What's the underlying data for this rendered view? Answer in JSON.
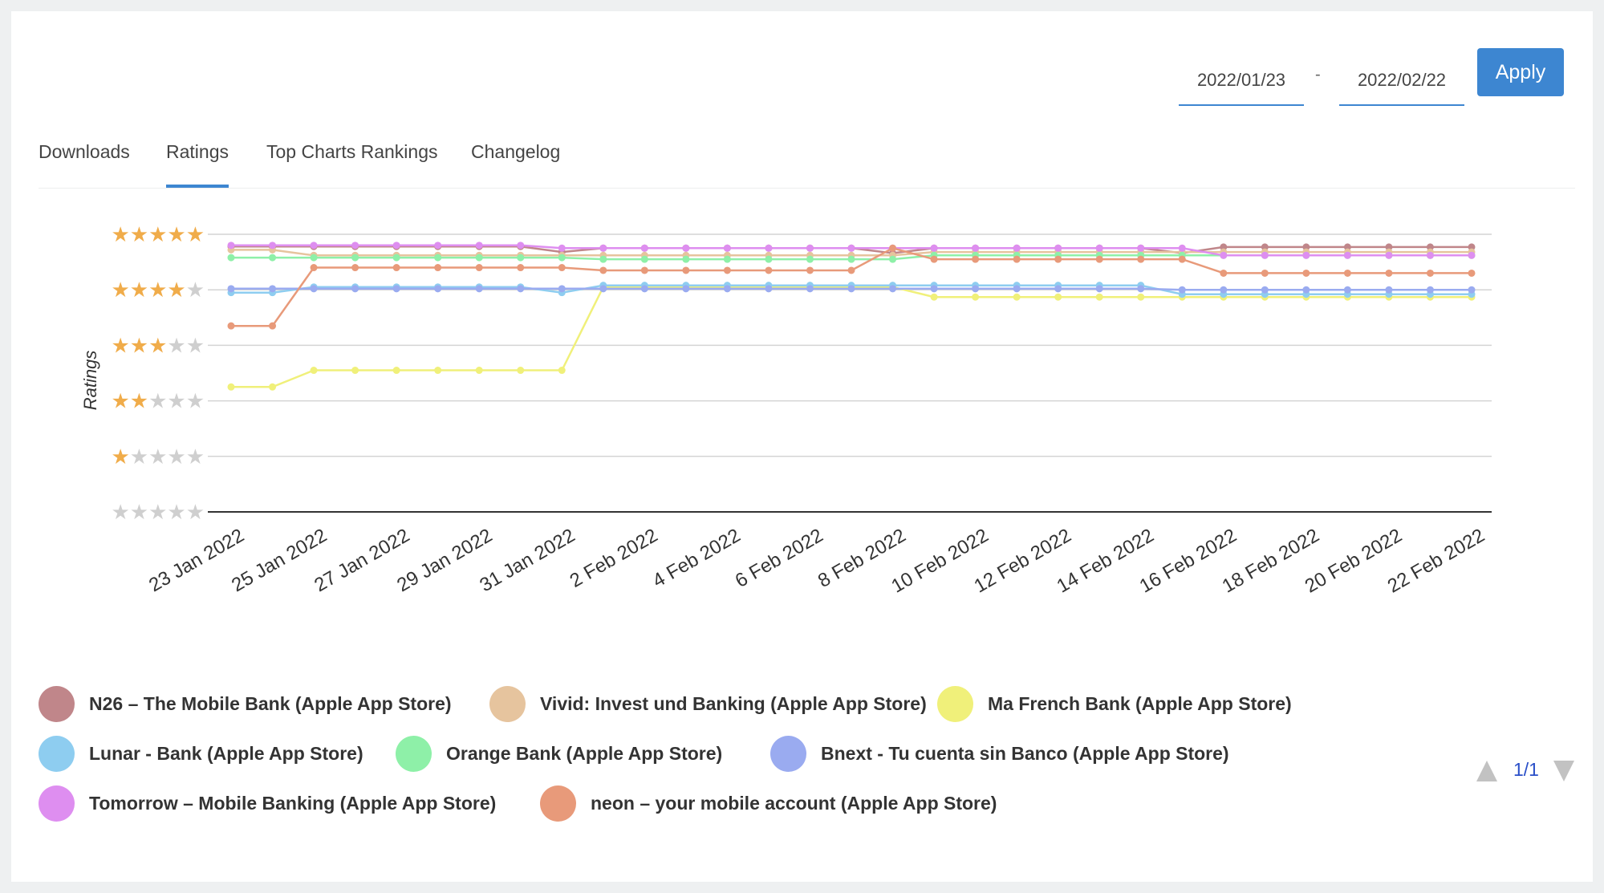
{
  "date_range": {
    "start": "2022/01/23",
    "separator": "-",
    "end": "2022/02/22"
  },
  "apply_label": "Apply",
  "tabs": [
    {
      "label": "Downloads",
      "active": false
    },
    {
      "label": "Ratings",
      "active": true
    },
    {
      "label": "Top Charts Rankings",
      "active": false
    },
    {
      "label": "Changelog",
      "active": false
    }
  ],
  "pager": {
    "label": "1/1"
  },
  "chart_data": {
    "type": "line",
    "ylabel": "Ratings",
    "ylim": [
      0,
      5
    ],
    "y_ticks": [
      0,
      1,
      2,
      3,
      4,
      5
    ],
    "y_tick_style": "star-rating",
    "x": [
      "2022-01-23",
      "2022-01-24",
      "2022-01-25",
      "2022-01-26",
      "2022-01-27",
      "2022-01-28",
      "2022-01-29",
      "2022-01-30",
      "2022-01-31",
      "2022-02-01",
      "2022-02-02",
      "2022-02-03",
      "2022-02-04",
      "2022-02-05",
      "2022-02-06",
      "2022-02-07",
      "2022-02-08",
      "2022-02-09",
      "2022-02-10",
      "2022-02-11",
      "2022-02-12",
      "2022-02-13",
      "2022-02-14",
      "2022-02-15",
      "2022-02-16",
      "2022-02-17",
      "2022-02-18",
      "2022-02-19",
      "2022-02-20",
      "2022-02-21",
      "2022-02-22"
    ],
    "x_tick_labels": [
      "23 Jan 2022",
      "25 Jan 2022",
      "27 Jan 2022",
      "29 Jan 2022",
      "31 Jan 2022",
      "2 Feb 2022",
      "4 Feb 2022",
      "6 Feb 2022",
      "8 Feb 2022",
      "10 Feb 2022",
      "12 Feb 2022",
      "14 Feb 2022",
      "16 Feb 2022",
      "18 Feb 2022",
      "20 Feb 2022",
      "22 Feb 2022"
    ],
    "grid": true,
    "legend_position": "bottom",
    "series": [
      {
        "name": "N26 – The Mobile Bank (Apple App Store)",
        "color": "#c0868a",
        "values": [
          4.78,
          4.78,
          4.78,
          4.78,
          4.78,
          4.78,
          4.78,
          4.78,
          4.68,
          4.75,
          4.75,
          4.75,
          4.75,
          4.75,
          4.75,
          4.75,
          4.66,
          4.75,
          4.75,
          4.75,
          4.75,
          4.75,
          4.75,
          4.66,
          4.77,
          4.77,
          4.77,
          4.77,
          4.77,
          4.77,
          4.77
        ]
      },
      {
        "name": "Vivid: Invest und Banking (Apple App Store)",
        "color": "#e6c49e",
        "values": [
          4.72,
          4.72,
          4.62,
          4.62,
          4.62,
          4.62,
          4.62,
          4.62,
          4.62,
          4.62,
          4.62,
          4.62,
          4.62,
          4.62,
          4.62,
          4.62,
          4.62,
          4.68,
          4.68,
          4.68,
          4.68,
          4.68,
          4.68,
          4.68,
          4.68,
          4.68,
          4.68,
          4.68,
          4.68,
          4.68,
          4.68
        ]
      },
      {
        "name": "Ma French Bank (Apple App Store)",
        "color": "#f0f07a",
        "values": [
          2.25,
          2.25,
          2.55,
          2.55,
          2.55,
          2.55,
          2.55,
          2.55,
          2.55,
          4.05,
          4.05,
          4.05,
          4.05,
          4.05,
          4.05,
          4.05,
          4.05,
          3.87,
          3.87,
          3.87,
          3.87,
          3.87,
          3.87,
          3.87,
          3.87,
          3.87,
          3.87,
          3.87,
          3.87,
          3.87,
          3.87
        ]
      },
      {
        "name": "Lunar - Bank (Apple App Store)",
        "color": "#8ecdf0",
        "values": [
          3.95,
          3.95,
          4.05,
          4.05,
          4.05,
          4.05,
          4.05,
          4.05,
          3.95,
          4.08,
          4.08,
          4.08,
          4.08,
          4.08,
          4.08,
          4.08,
          4.08,
          4.08,
          4.08,
          4.08,
          4.08,
          4.08,
          4.08,
          3.92,
          3.92,
          3.92,
          3.92,
          3.92,
          3.92,
          3.92,
          3.92
        ]
      },
      {
        "name": "Orange Bank (Apple App Store)",
        "color": "#8ef0a8",
        "values": [
          4.58,
          4.58,
          4.58,
          4.58,
          4.58,
          4.58,
          4.58,
          4.58,
          4.58,
          4.55,
          4.55,
          4.55,
          4.55,
          4.55,
          4.55,
          4.55,
          4.55,
          4.62,
          4.62,
          4.62,
          4.62,
          4.62,
          4.62,
          4.62,
          4.62,
          4.62,
          4.62,
          4.62,
          4.62,
          4.62,
          4.62
        ]
      },
      {
        "name": "Bnext - Tu cuenta sin Banco (Apple App Store)",
        "color": "#9aabf0",
        "values": [
          4.02,
          4.02,
          4.02,
          4.02,
          4.02,
          4.02,
          4.02,
          4.02,
          4.02,
          4.02,
          4.02,
          4.02,
          4.02,
          4.02,
          4.02,
          4.02,
          4.02,
          4.02,
          4.02,
          4.02,
          4.02,
          4.02,
          4.02,
          4.0,
          4.0,
          4.0,
          4.0,
          4.0,
          4.0,
          4.0,
          4.0
        ]
      },
      {
        "name": "Tomorrow – Mobile Banking (Apple App Store)",
        "color": "#de8ef0",
        "values": [
          4.8,
          4.8,
          4.8,
          4.8,
          4.8,
          4.8,
          4.8,
          4.8,
          4.75,
          4.75,
          4.75,
          4.75,
          4.75,
          4.75,
          4.75,
          4.75,
          4.75,
          4.75,
          4.75,
          4.75,
          4.75,
          4.75,
          4.75,
          4.75,
          4.62,
          4.62,
          4.62,
          4.62,
          4.62,
          4.62,
          4.62
        ]
      },
      {
        "name": "neon – your mobile account (Apple App Store)",
        "color": "#e89a7a",
        "values": [
          3.35,
          3.35,
          4.4,
          4.4,
          4.4,
          4.4,
          4.4,
          4.4,
          4.4,
          4.35,
          4.35,
          4.35,
          4.35,
          4.35,
          4.35,
          4.35,
          4.75,
          4.55,
          4.55,
          4.55,
          4.55,
          4.55,
          4.55,
          4.55,
          4.3,
          4.3,
          4.3,
          4.3,
          4.3,
          4.3,
          4.3
        ]
      }
    ]
  }
}
